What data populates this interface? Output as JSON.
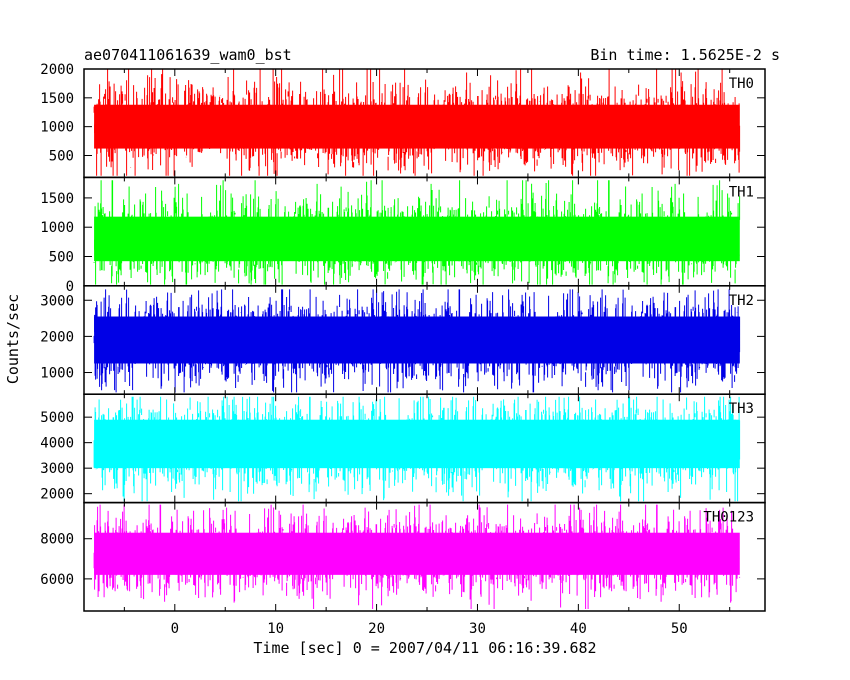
{
  "header": {
    "title": "ae070411061639_wam0_bst",
    "bin_time": "Bin time: 1.5625E-2 s"
  },
  "chart_data": {
    "type": "line",
    "title": "ae070411061639_wam0_bst",
    "xlabel": "Time [sec] 0 = 2007/04/11 06:16:39.682",
    "ylabel": "Counts/sec",
    "xlim": [
      -9,
      58.5
    ],
    "x_ticks": [
      0,
      10,
      20,
      30,
      40,
      50
    ],
    "x_tick_labels": [
      "0",
      "10",
      "20",
      "30",
      "40",
      "50"
    ],
    "x_data_range": [
      -8,
      56
    ],
    "bin_time": 0.015625,
    "panels": [
      {
        "name": "TH0",
        "color": "#ff0000",
        "ylim": [
          120,
          2000
        ],
        "y_ticks": [
          500,
          1000,
          1500,
          2000
        ],
        "y_tick_labels": [
          "500",
          "1000",
          "1500",
          "2000"
        ],
        "envelope_min": 150,
        "envelope_max": 2000,
        "core_low": 620,
        "core_high": 1380
      },
      {
        "name": "TH1",
        "color": "#00ff00",
        "ylim": [
          0,
          1850
        ],
        "y_ticks": [
          0,
          500,
          1000,
          1500
        ],
        "y_tick_labels": [
          "0",
          "500",
          "1000",
          "1500"
        ],
        "envelope_min": 20,
        "envelope_max": 1800,
        "core_low": 420,
        "core_high": 1180
      },
      {
        "name": "TH2",
        "color": "#0000e6",
        "ylim": [
          400,
          3400
        ],
        "y_ticks": [
          1000,
          2000,
          3000
        ],
        "y_tick_labels": [
          "1000",
          "2000",
          "3000"
        ],
        "envelope_min": 450,
        "envelope_max": 3300,
        "core_low": 1250,
        "core_high": 2550
      },
      {
        "name": "TH3",
        "color": "#00ffff",
        "ylim": [
          1650,
          5900
        ],
        "y_ticks": [
          2000,
          3000,
          4000,
          5000
        ],
        "y_tick_labels": [
          "2000",
          "3000",
          "4000",
          "5000"
        ],
        "envelope_min": 1700,
        "envelope_max": 5800,
        "core_low": 3000,
        "core_high": 4900
      },
      {
        "name": "TH0123",
        "color": "#ff00ff",
        "ylim": [
          4400,
          9800
        ],
        "y_ticks": [
          6000,
          8000
        ],
        "y_tick_labels": [
          "6000",
          "8000"
        ],
        "envelope_min": 4500,
        "envelope_max": 9700,
        "core_low": 6200,
        "core_high": 8300
      }
    ]
  }
}
